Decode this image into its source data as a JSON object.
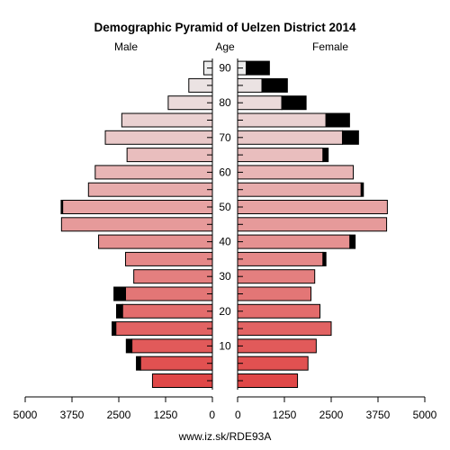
{
  "chart_data": {
    "type": "bar",
    "subtype": "population-pyramid",
    "title": "Demographic Pyramid of Uelzen District 2014",
    "label_left": "Male",
    "label_center": "Age",
    "label_right": "Female",
    "footer": "www.iz.sk/RDE93A",
    "age_groups": [
      "0",
      "5",
      "10",
      "15",
      "20",
      "25",
      "30",
      "35",
      "40",
      "45",
      "50",
      "55",
      "60",
      "65",
      "70",
      "75",
      "80",
      "85",
      "90"
    ],
    "age_tick_labels": [
      "10",
      "20",
      "30",
      "40",
      "50",
      "60",
      "70",
      "80",
      "90"
    ],
    "x_ticks": [
      "5000",
      "3750",
      "2500",
      "1250",
      "0",
      "0",
      "1250",
      "2500",
      "3750",
      "5000"
    ],
    "xlim": [
      0,
      5000
    ],
    "male_values": [
      1600,
      1920,
      2150,
      2580,
      2400,
      2320,
      2100,
      2320,
      3040,
      4030,
      4000,
      3310,
      3130,
      2280,
      2860,
      2420,
      1180,
      630,
      230
    ],
    "male_excess": [
      0,
      110,
      150,
      100,
      160,
      310,
      0,
      0,
      0,
      0,
      40,
      0,
      0,
      0,
      0,
      0,
      0,
      0,
      0
    ],
    "female_values": [
      1600,
      1880,
      2100,
      2500,
      2200,
      1960,
      2060,
      2280,
      3000,
      3980,
      4000,
      3300,
      3090,
      2280,
      2800,
      2360,
      1180,
      650,
      230
    ],
    "female_excess": [
      0,
      0,
      0,
      0,
      0,
      0,
      0,
      80,
      140,
      0,
      0,
      60,
      0,
      140,
      430,
      630,
      650,
      680,
      620
    ],
    "colors": {
      "excess": "#000000",
      "edge": "#000000",
      "base_red": "#e04848",
      "top_pink": "#ececec"
    }
  }
}
